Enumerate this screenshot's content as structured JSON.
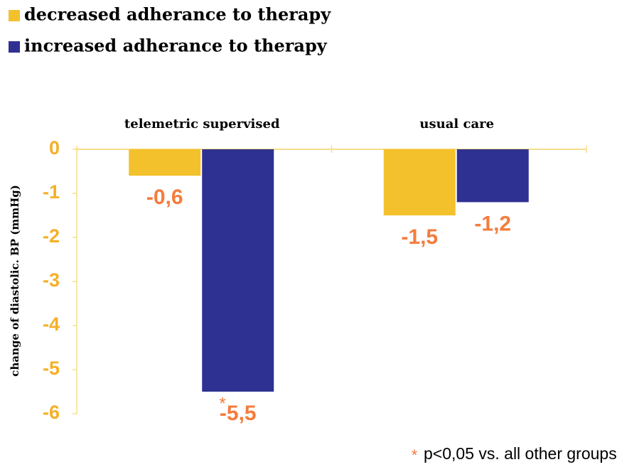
{
  "chart_data": {
    "type": "bar",
    "y_label": "change of diastolic. BP (mmHg)",
    "categories": [
      "telemetric supervised",
      "usual care"
    ],
    "series": [
      {
        "name": "decreased adherance to therapy",
        "color": "#f3c12b",
        "values": [
          -0.6,
          -1.5
        ],
        "value_labels": [
          "-0,6",
          "-1,5"
        ]
      },
      {
        "name": "increased adherance to therapy",
        "color": "#2e3192",
        "values": [
          -5.5,
          -1.2
        ],
        "value_labels": [
          "-5,5",
          "-1,2"
        ]
      }
    ],
    "ylim": [
      -6,
      0
    ],
    "yticks": [
      0,
      -1,
      -2,
      -3,
      -4,
      -5,
      -6
    ],
    "significance_marker": "*",
    "footnote_marker": "*",
    "footnote": "p<0,05 vs. all other groups"
  }
}
